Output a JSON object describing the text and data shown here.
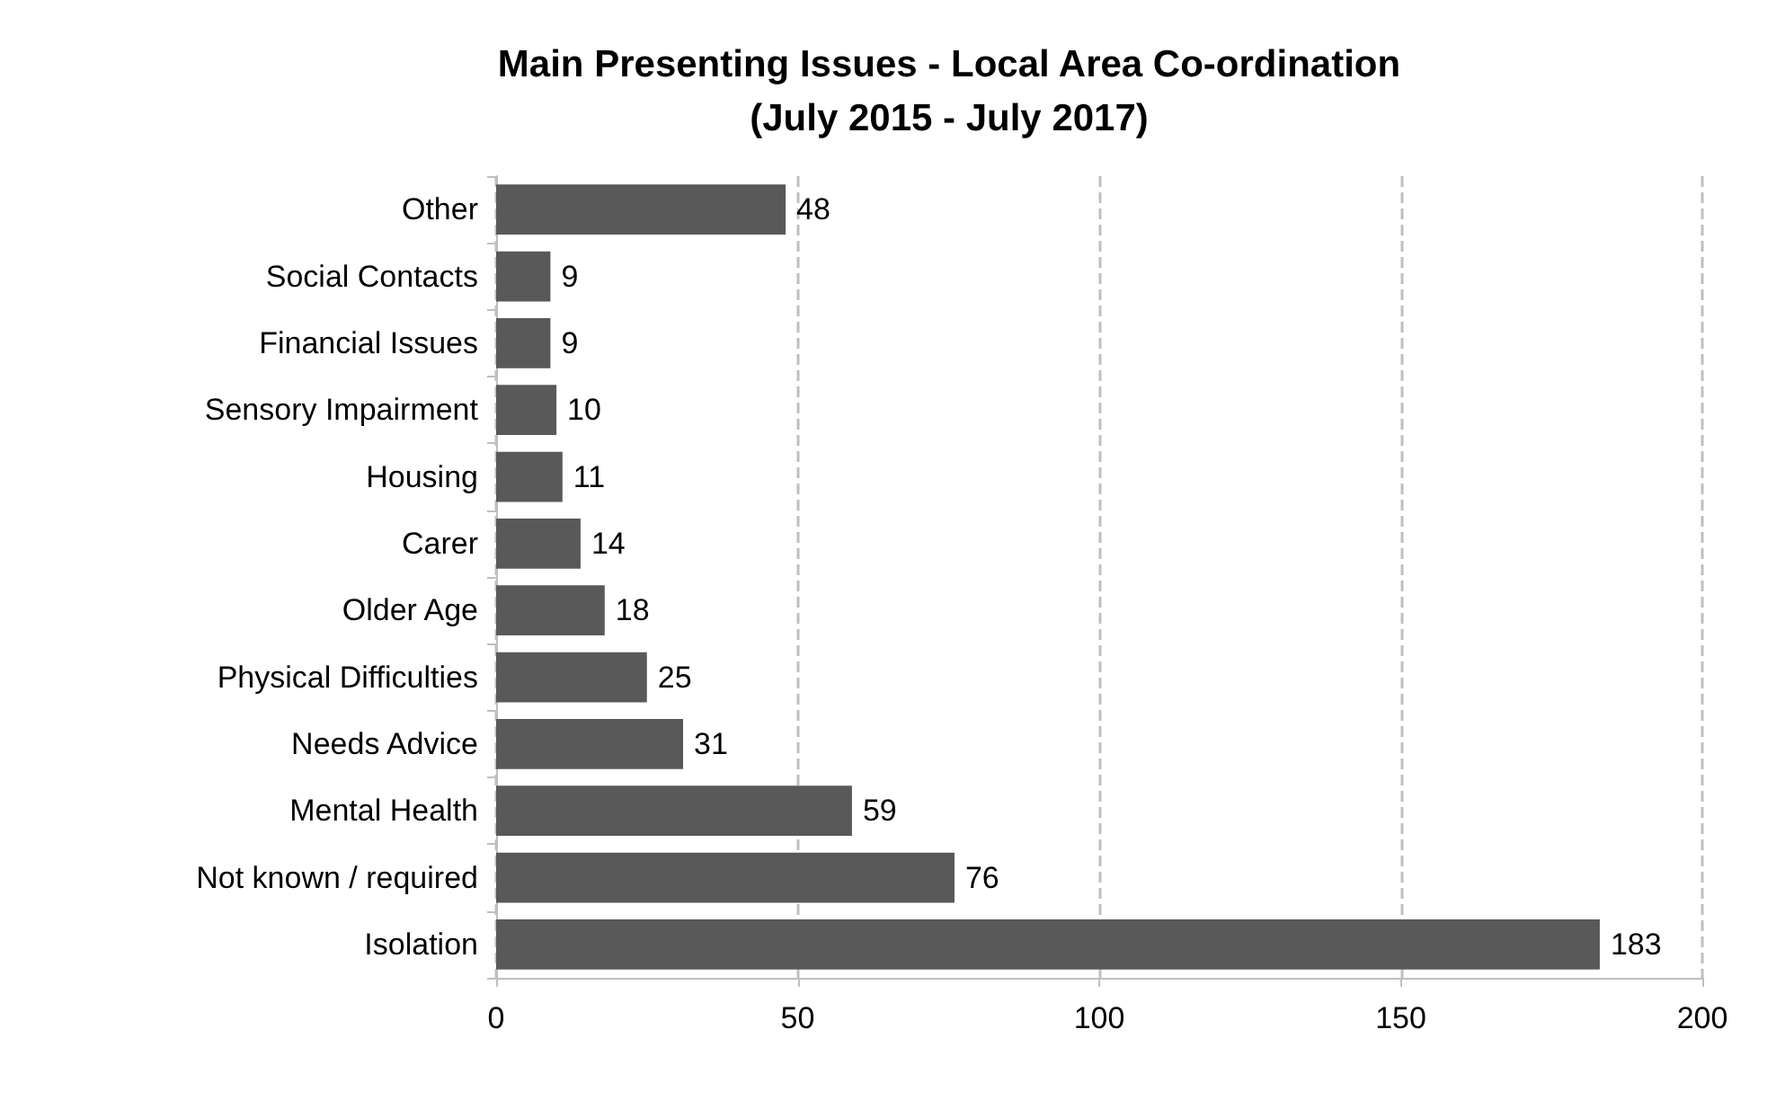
{
  "chart_data": {
    "type": "bar",
    "orientation": "horizontal",
    "title": "Main Presenting Issues - Local Area Co-ordination\n(July 2015 - July 2017)",
    "categories": [
      "Other",
      "Social Contacts",
      "Financial Issues",
      "Sensory Impairment",
      "Housing",
      "Carer",
      "Older Age",
      "Physical Difficulties",
      "Needs Advice",
      "Mental Health",
      "Not known / required",
      "Isolation"
    ],
    "values": [
      48,
      9,
      9,
      10,
      11,
      14,
      18,
      25,
      31,
      59,
      76,
      183
    ],
    "color": "#595959",
    "xlim": [
      0,
      200
    ],
    "xticks": [
      0,
      50,
      100,
      150,
      200
    ],
    "grid": "x",
    "data_labels": true
  }
}
